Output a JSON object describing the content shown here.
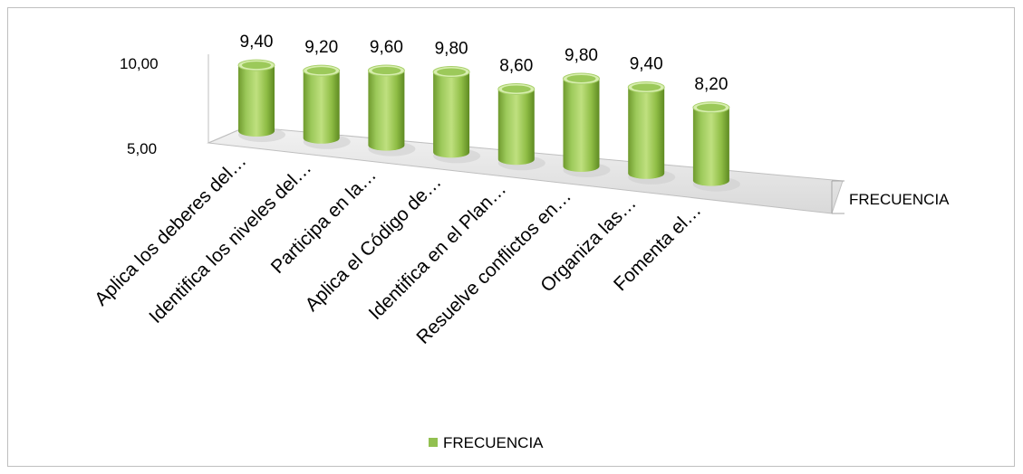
{
  "chart_data": {
    "type": "bar",
    "style": "3d-cylinder",
    "categories": [
      "Aplica los deberes del…",
      "Identifica los niveles del…",
      "Participa en la…",
      "Aplica el  Código de…",
      "Identifica en el Plan…",
      "Resuelve conflictos en…",
      "Organiza las…",
      "Fomenta el…"
    ],
    "series": [
      {
        "name": "FRECUENCIA",
        "values": [
          9.4,
          9.2,
          9.6,
          9.8,
          8.6,
          9.8,
          9.4,
          8.2
        ],
        "color": "#92c050"
      }
    ],
    "data_labels": [
      "9,40",
      "9,20",
      "9,60",
      "9,80",
      "8,60",
      "9,80",
      "9,40",
      "8,20"
    ],
    "y_ticks": [
      "5,00",
      "10,00"
    ],
    "ylim": [
      5,
      10
    ],
    "depth_axis_label": "FRECUENCIA",
    "legend": {
      "position": "bottom",
      "label": "FRECUENCIA"
    },
    "grid": false
  }
}
